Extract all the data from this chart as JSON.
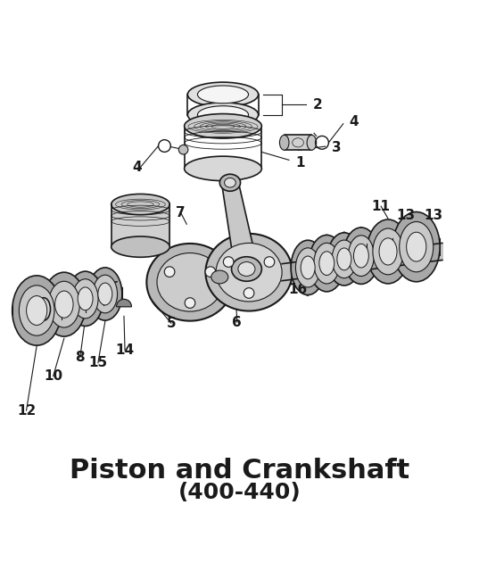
{
  "title": "Piston and Crankshaft",
  "subtitle": "(400-440)",
  "title_fontsize": 22,
  "subtitle_fontsize": 18,
  "bg_color": "#ffffff",
  "line_color": "#1a1a1a"
}
